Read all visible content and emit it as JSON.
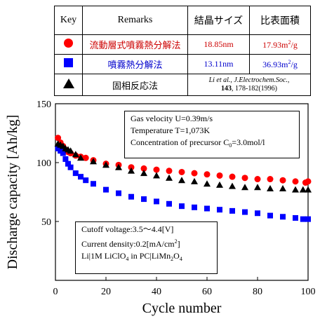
{
  "legend": {
    "headers": {
      "key": "Key",
      "remarks": "Remarks",
      "crystal_size": "結晶サイズ",
      "surface_area": "比表面積"
    },
    "rows": [
      {
        "marker": "red-circle-icon",
        "remarks": "流動層式噴霧熱分解法",
        "crystal_size": "18.85nm",
        "surface_area": "17.93m",
        "surface_area_unit": "2",
        "surface_area_tail": "/g",
        "color": "#cc0000"
      },
      {
        "marker": "blue-square-icon",
        "remarks": "噴霧熱分解法",
        "crystal_size": "13.11nm",
        "surface_area": "36.93m",
        "surface_area_unit": "2",
        "surface_area_tail": "/g",
        "color": "#0000cc"
      },
      {
        "marker": "black-triangle-icon",
        "remarks": "固相反応法",
        "reference_line1": "Li et al., J.Electrochem.Soc.,",
        "reference_line2_bold": "143",
        "reference_line2_rest": ", 178-182(1996)"
      }
    ]
  },
  "conditions_box": {
    "line1": "Gas velocity U=0.39m/s",
    "line2": "Temperature T=1,073K",
    "line3_prefix": "Concentration of precursor C",
    "line3_sub": "0",
    "line3_suffix": "=3.0mol/l"
  },
  "test_box": {
    "line1": "Cutoff voltage:3.5～4.4[V]",
    "line2_prefix": "Current density:0.2[mA/cm",
    "line2_sup": "2",
    "line2_suffix": "]",
    "line3_a": "Li|1M LiClO",
    "line3_sub1": "4",
    "line3_b": " in PC|LiMn",
    "line3_sub2": "2",
    "line3_c": "O",
    "line3_sub3": "4"
  },
  "chart_data": {
    "type": "scatter",
    "xlabel": "Cycle number",
    "ylabel": "Discharge capacity [Ah/kg]",
    "xlim": [
      0,
      100
    ],
    "ylim": [
      0,
      150
    ],
    "xticks": [
      0,
      20,
      40,
      60,
      80,
      100
    ],
    "yticks": [
      50,
      100,
      150
    ],
    "series": [
      {
        "name": "流動層式噴霧熱分解法",
        "marker": "circle",
        "color": "#ff0000",
        "x": [
          1,
          2,
          3,
          4,
          5,
          6,
          8,
          10,
          12,
          15,
          20,
          25,
          30,
          35,
          40,
          45,
          50,
          55,
          60,
          65,
          70,
          75,
          80,
          85,
          90,
          95,
          99,
          100
        ],
        "y": [
          121,
          117,
          114,
          111,
          109,
          108,
          106,
          105,
          104,
          102,
          99,
          98,
          96,
          95,
          94,
          93,
          92,
          91,
          90,
          89,
          88,
          87,
          86,
          86,
          85,
          84,
          83,
          84
        ]
      },
      {
        "name": "噴霧熱分解法",
        "marker": "square",
        "color": "#0000ff",
        "x": [
          1,
          2,
          3,
          4,
          5,
          6,
          8,
          10,
          12,
          15,
          20,
          25,
          30,
          35,
          40,
          45,
          50,
          55,
          60,
          65,
          70,
          75,
          80,
          85,
          90,
          95,
          98,
          100
        ],
        "y": [
          112,
          110,
          108,
          103,
          99,
          96,
          91,
          88,
          85,
          82,
          77,
          74,
          71,
          69,
          67,
          65,
          63,
          62,
          61,
          60,
          59,
          58,
          57,
          55,
          54,
          53,
          52,
          52
        ]
      },
      {
        "name": "固相反応法",
        "marker": "triangle",
        "color": "#000000",
        "x": [
          1,
          2,
          3,
          4,
          5,
          6,
          8,
          10,
          15,
          20,
          25,
          30,
          35,
          40,
          45,
          50,
          55,
          60,
          65,
          70,
          75,
          80,
          85,
          90,
          95,
          98,
          100
        ],
        "y": [
          116,
          115,
          114,
          112,
          111,
          110,
          107,
          104,
          101,
          98,
          96,
          93,
          91,
          89,
          87,
          85,
          84,
          82,
          81,
          80,
          79,
          79,
          78,
          78,
          77,
          77,
          77
        ]
      }
    ]
  }
}
